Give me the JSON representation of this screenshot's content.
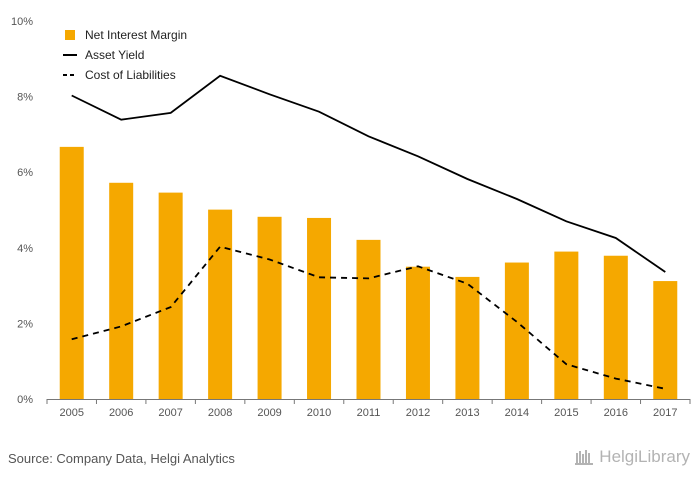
{
  "chart_data": {
    "type": "bar",
    "categories": [
      "2005",
      "2006",
      "2007",
      "2008",
      "2009",
      "2010",
      "2011",
      "2012",
      "2013",
      "2014",
      "2015",
      "2016",
      "2017"
    ],
    "series": [
      {
        "name": "Net Interest Margin",
        "type": "bar",
        "color": "#f5a800",
        "values": [
          6.67,
          5.72,
          5.46,
          5.01,
          4.82,
          4.79,
          4.21,
          3.5,
          3.23,
          3.61,
          3.9,
          3.79,
          3.12
        ]
      },
      {
        "name": "Asset Yield",
        "type": "line",
        "style": "solid",
        "color": "#000000",
        "values": [
          8.03,
          7.39,
          7.57,
          8.55,
          8.06,
          7.6,
          6.95,
          6.42,
          5.82,
          5.29,
          4.7,
          4.26,
          3.36
        ]
      },
      {
        "name": "Cost of Liabilities",
        "type": "line",
        "style": "dashed",
        "color": "#000000",
        "values": [
          1.58,
          1.92,
          2.43,
          4.03,
          3.69,
          3.22,
          3.19,
          3.51,
          3.05,
          2.04,
          0.92,
          0.54,
          0.27
        ]
      }
    ],
    "y_ticks": [
      "0%",
      "2%",
      "4%",
      "6%",
      "8%",
      "10%"
    ],
    "ylim": [
      0,
      10
    ],
    "grid": false,
    "legend_position": "top-left"
  },
  "footer": {
    "source": "Source: Company Data, Helgi Analytics",
    "brand": "HelgiLibrary"
  }
}
